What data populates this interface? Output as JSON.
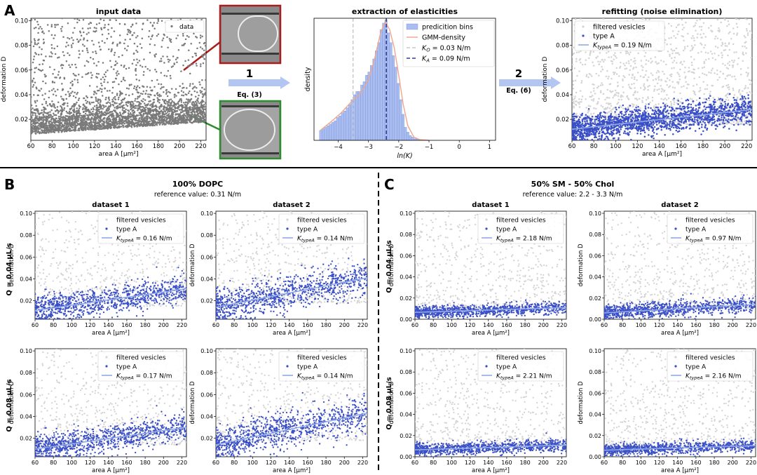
{
  "panel_letters": {
    "A": "A",
    "B": "B",
    "C": "C"
  },
  "arrows": [
    {
      "step": "1",
      "eq": "Eq. (3)"
    },
    {
      "step": "2",
      "eq": "Eq. (6)"
    }
  ],
  "group_titles": {
    "B": {
      "title": "100% DOPC",
      "ref": "reference value: 0.31 N/m"
    },
    "C": {
      "title": "50% SM - 50% Chol",
      "ref": "reference value: 2.2 - 3.3 N/m"
    }
  },
  "row_labels": [
    "Q = 0.04 µL/s",
    "Q = 0.08 µL/s"
  ],
  "colors": {
    "data": "#7a7a7a",
    "filtered": "#d4d4d4",
    "typeA": "#3a4fc6",
    "fit": "#8fa8e8",
    "hist": "#a9bdf0",
    "gmm": "#f0a58c",
    "ko": "#c8c8c8",
    "ka": "#2f3f9a",
    "arrow": "#b3c6f2",
    "frame_top": "#aa1d1d",
    "frame_bottom": "#2e8b2e"
  },
  "legend_labels": {
    "data": "data",
    "filtered": "filtered vesicles",
    "typeA": "type A",
    "bins": "predicition bins",
    "gmm": "GMM-density",
    "ko": "K_O = 0.03 N/m",
    "ka": "K_A = 0.09 N/m"
  },
  "chart_data": [
    {
      "id": "A1",
      "type": "scatter",
      "title": "input data",
      "xlabel": "area A [µm²]",
      "ylabel": "deformation D",
      "xlim": [
        60,
        225
      ],
      "ylim": [
        0.003,
        0.102
      ],
      "xticks": [
        60,
        80,
        100,
        120,
        140,
        160,
        180,
        200,
        220
      ],
      "yticks": [
        0.02,
        0.04,
        0.06,
        0.08,
        0.1
      ],
      "legend": [
        "data"
      ],
      "legend_loc": "upper right",
      "series": [
        {
          "name": "data",
          "role": "data",
          "n": 6500,
          "x_range": [
            60,
            225
          ],
          "d_median": 0.02
        }
      ]
    },
    {
      "id": "A2",
      "type": "bar",
      "title": "extraction of elasticities",
      "xlabel": "ln(K)",
      "ylabel": "density",
      "xlim": [
        -4.8,
        1.2
      ],
      "ylim": [
        0,
        0.75
      ],
      "xticks": [
        -4,
        -3,
        -2,
        -1,
        0,
        1
      ],
      "legend": [
        "GMM-density",
        "K_O = 0.03 N/m",
        "K_A = 0.09 N/m",
        "predicition bins"
      ],
      "legend_loc": "upper right",
      "bin_centers": [
        -4.58,
        -4.5,
        -4.42,
        -4.34,
        -4.26,
        -4.18,
        -4.1,
        -4.02,
        -3.94,
        -3.86,
        -3.78,
        -3.7,
        -3.62,
        -3.54,
        -3.46,
        -3.38,
        -3.3,
        -3.22,
        -3.14,
        -3.06,
        -2.98,
        -2.9,
        -2.82,
        -2.74,
        -2.66,
        -2.58,
        -2.5,
        -2.42,
        -2.34,
        -2.26,
        -2.18,
        -2.1,
        -2.02,
        -1.94,
        -1.86,
        -1.78,
        -1.7,
        -1.62,
        -1.54,
        -1.46,
        -1.38,
        -1.3,
        -1.22,
        -1.14,
        -1.06
      ],
      "values": [
        0.06,
        0.07,
        0.08,
        0.09,
        0.1,
        0.11,
        0.12,
        0.14,
        0.15,
        0.17,
        0.18,
        0.2,
        0.22,
        0.25,
        0.28,
        0.3,
        0.3,
        0.34,
        0.36,
        0.4,
        0.42,
        0.46,
        0.5,
        0.55,
        0.6,
        0.68,
        0.72,
        0.74,
        0.66,
        0.6,
        0.52,
        0.45,
        0.35,
        0.25,
        0.16,
        0.08,
        0.05,
        0.03,
        0.02,
        0.01,
        0.008,
        0.005,
        0.003,
        0.002,
        0.001
      ],
      "gmm_x": [
        -4.6,
        -4.2,
        -3.9,
        -3.6,
        -3.3,
        -3.0,
        -2.8,
        -2.6,
        -2.45,
        -2.3,
        -2.15,
        -2.0,
        -1.85,
        -1.7,
        -1.5,
        -1.3,
        -1.0
      ],
      "gmm_y": [
        0.06,
        0.12,
        0.17,
        0.23,
        0.28,
        0.37,
        0.5,
        0.66,
        0.73,
        0.68,
        0.57,
        0.4,
        0.22,
        0.09,
        0.02,
        0.004,
        0.0
      ],
      "vlines": [
        {
          "name": "K_O",
          "x": -3.51,
          "value": "0.03 N/m"
        },
        {
          "name": "K_A",
          "x": -2.41,
          "value": "0.09 N/m"
        }
      ]
    },
    {
      "id": "A3",
      "type": "scatter",
      "title": "refitting (noise elimination)",
      "xlabel": "area A [µm²]",
      "ylabel": "deformation D",
      "xlim": [
        60,
        225
      ],
      "ylim": [
        0.003,
        0.102
      ],
      "xticks": [
        60,
        80,
        100,
        120,
        140,
        160,
        180,
        200,
        220
      ],
      "yticks": [
        0.02,
        0.04,
        0.06,
        0.08,
        0.1
      ],
      "legend": [
        "filtered vesicles",
        "type A",
        "K_typeA = 0.19 N/m"
      ],
      "legend_loc": "upper left",
      "fit": {
        "K": "0.19 N/m",
        "y_at_60": 0.012,
        "y_at_225": 0.028
      }
    },
    {
      "id": "B1",
      "type": "scatter",
      "title": "dataset 1",
      "xlabel": "area A [µm²]",
      "ylabel": "deformation D",
      "xlim": [
        60,
        225
      ],
      "ylim": [
        0.003,
        0.102
      ],
      "xticks": [
        60,
        80,
        100,
        120,
        140,
        160,
        180,
        200,
        220
      ],
      "yticks": [
        0.02,
        0.04,
        0.06,
        0.08,
        0.1
      ],
      "legend": [
        "filtered vesicles",
        "type A",
        "K_typeA = 0.16 N/m"
      ],
      "legend_loc": "upper right",
      "fit": {
        "K": "0.16 N/m",
        "y_at_60": 0.011,
        "y_at_225": 0.031
      }
    },
    {
      "id": "B2",
      "type": "scatter",
      "title": "dataset 2",
      "xlabel": "area A [µm²]",
      "ylabel": "deformation D",
      "xlim": [
        60,
        225
      ],
      "ylim": [
        0.003,
        0.102
      ],
      "xticks": [
        60,
        80,
        100,
        120,
        140,
        160,
        180,
        200,
        220
      ],
      "yticks": [
        0.02,
        0.04,
        0.06,
        0.08,
        0.1
      ],
      "legend": [
        "filtered vesicles",
        "type A",
        "K_typeA = 0.14 N/m"
      ],
      "legend_loc": "upper right",
      "fit": {
        "K": "0.14 N/m",
        "y_at_60": 0.014,
        "y_at_225": 0.041
      }
    },
    {
      "id": "B3",
      "type": "scatter",
      "xlabel": "area A [µm²]",
      "ylabel": "deformation D",
      "xlim": [
        60,
        225
      ],
      "ylim": [
        0.003,
        0.102
      ],
      "xticks": [
        60,
        80,
        100,
        120,
        140,
        160,
        180,
        200,
        220
      ],
      "yticks": [
        0.02,
        0.04,
        0.06,
        0.08,
        0.1
      ],
      "legend": [
        "filtered vesicles",
        "type A",
        "K_typeA = 0.17 N/m"
      ],
      "legend_loc": "upper right",
      "fit": {
        "K": "0.17 N/m",
        "y_at_60": 0.01,
        "y_at_225": 0.03
      }
    },
    {
      "id": "B4",
      "type": "scatter",
      "xlabel": "area A [µm²]",
      "ylabel": "deformation D",
      "xlim": [
        60,
        225
      ],
      "ylim": [
        0.003,
        0.102
      ],
      "xticks": [
        60,
        80,
        100,
        120,
        140,
        160,
        180,
        200,
        220
      ],
      "yticks": [
        0.02,
        0.04,
        0.06,
        0.08,
        0.1
      ],
      "legend": [
        "filtered vesicles",
        "type A",
        "K_typeA = 0.14 N/m"
      ],
      "legend_loc": "upper right",
      "fit": {
        "K": "0.14 N/m",
        "y_at_60": 0.014,
        "y_at_225": 0.043
      }
    },
    {
      "id": "C1",
      "type": "scatter",
      "title": "dataset 1",
      "xlabel": "area A [µm²]",
      "ylabel": "deformation D",
      "xlim": [
        60,
        225
      ],
      "ylim": [
        0.0,
        0.102
      ],
      "xticks": [
        60,
        80,
        100,
        120,
        140,
        160,
        180,
        200,
        220
      ],
      "yticks": [
        0.0,
        0.02,
        0.04,
        0.06,
        0.08,
        0.1
      ],
      "legend": [
        "filtered vesicles",
        "type A",
        "K_typeA = 2.18 N/m"
      ],
      "legend_loc": "upper right",
      "fit": {
        "K": "2.18 N/m",
        "y_at_60": 0.0065,
        "y_at_225": 0.011
      }
    },
    {
      "id": "C2",
      "type": "scatter",
      "title": "dataset 2",
      "xlabel": "area A [µm²]",
      "ylabel": "deformation D",
      "xlim": [
        60,
        225
      ],
      "ylim": [
        0.0,
        0.102
      ],
      "xticks": [
        60,
        80,
        100,
        120,
        140,
        160,
        180,
        200,
        220
      ],
      "yticks": [
        0.0,
        0.02,
        0.04,
        0.06,
        0.08,
        0.1
      ],
      "legend": [
        "filtered vesicles",
        "type A",
        "K_typeA = 0.97 N/m"
      ],
      "legend_loc": "upper right",
      "fit": {
        "K": "0.97 N/m",
        "y_at_60": 0.006,
        "y_at_225": 0.014
      }
    },
    {
      "id": "C3",
      "type": "scatter",
      "xlabel": "area A [µm²]",
      "ylabel": "deformation D",
      "xlim": [
        60,
        225
      ],
      "ylim": [
        0.0,
        0.102
      ],
      "xticks": [
        60,
        80,
        100,
        120,
        140,
        160,
        180,
        200,
        220
      ],
      "yticks": [
        0.0,
        0.02,
        0.04,
        0.06,
        0.08,
        0.1
      ],
      "legend": [
        "filtered vesicles",
        "type A",
        "K_typeA = 2.21 N/m"
      ],
      "legend_loc": "upper right",
      "fit": {
        "K": "2.21 N/m",
        "y_at_60": 0.0065,
        "y_at_225": 0.011
      }
    },
    {
      "id": "C4",
      "type": "scatter",
      "xlabel": "area A [µm²]",
      "ylabel": "deformation D",
      "xlim": [
        60,
        225
      ],
      "ylim": [
        0.0,
        0.102
      ],
      "xticks": [
        60,
        80,
        100,
        120,
        140,
        160,
        180,
        200,
        220
      ],
      "yticks": [
        0.0,
        0.02,
        0.04,
        0.06,
        0.08,
        0.1
      ],
      "legend": [
        "filtered vesicles",
        "type A",
        "K_typeA = 2.16 N/m"
      ],
      "legend_loc": "upper right",
      "fit": {
        "K": "2.16 N/m",
        "y_at_60": 0.0062,
        "y_at_225": 0.0105
      }
    }
  ]
}
